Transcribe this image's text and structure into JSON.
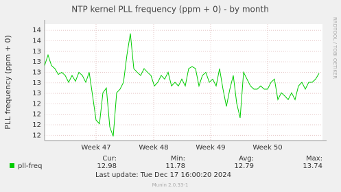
{
  "chart_data": {
    "type": "line",
    "title": "NTP kernel PLL frequency (ppm + 0) - by month",
    "y_label": "PLL frequency (ppm + 0)",
    "side_text": "RRDTOOL / TOBI OETIKER",
    "series": [
      {
        "name": "pll-freq",
        "color": "#00cc00",
        "values": [
          13.13,
          13.33,
          13.13,
          13.07,
          12.96,
          13.0,
          12.94,
          12.81,
          12.94,
          12.83,
          13.0,
          12.94,
          12.81,
          13.0,
          12.55,
          12.09,
          12.02,
          12.61,
          12.7,
          11.96,
          11.78,
          12.61,
          12.68,
          12.81,
          13.33,
          13.74,
          13.07,
          13.0,
          12.94,
          13.07,
          13.0,
          12.94,
          12.74,
          12.81,
          12.94,
          12.87,
          13.0,
          12.74,
          12.81,
          12.74,
          12.87,
          12.74,
          13.07,
          13.11,
          13.07,
          12.74,
          12.94,
          13.0,
          12.81,
          12.87,
          12.74,
          13.07,
          12.68,
          12.35,
          12.68,
          12.94,
          12.41,
          12.13,
          13.0,
          12.87,
          12.74,
          12.68,
          12.68,
          12.74,
          12.68,
          12.68,
          12.81,
          12.87,
          12.48,
          12.61,
          12.55,
          12.48,
          12.61,
          12.48,
          12.74,
          12.81,
          12.68,
          12.81,
          12.81,
          12.87,
          12.98
        ]
      }
    ],
    "xlim": [
      0,
      81
    ],
    "xticks": [
      {
        "value": 15,
        "label": "Week 47"
      },
      {
        "value": 31.8,
        "label": "Week 48"
      },
      {
        "value": 48.4,
        "label": "Week 49"
      },
      {
        "value": 65,
        "label": "Week 50"
      }
    ],
    "ylim": [
      11.7,
      13.92
    ],
    "yticks": [
      {
        "value": 11.8,
        "label": "12"
      },
      {
        "value": 12.0,
        "label": "12"
      },
      {
        "value": 12.2,
        "label": "12"
      },
      {
        "value": 12.4,
        "label": "12"
      },
      {
        "value": 12.6,
        "label": "13"
      },
      {
        "value": 12.8,
        "label": "13"
      },
      {
        "value": 13.0,
        "label": "13"
      },
      {
        "value": 13.2,
        "label": "13"
      },
      {
        "value": 13.4,
        "label": "13"
      },
      {
        "value": 13.6,
        "label": "14"
      },
      {
        "value": 13.8,
        "label": "14"
      }
    ],
    "grid": true,
    "legend_stats": {
      "headers": [
        "Cur:",
        "Min:",
        "Avg:",
        "Max:"
      ],
      "values": [
        12.98,
        11.78,
        12.79,
        13.74
      ]
    },
    "last_update": "Last update:  Tue Dec 17 16:00:20 2024",
    "footer": "Munin 2.0.33-1"
  }
}
